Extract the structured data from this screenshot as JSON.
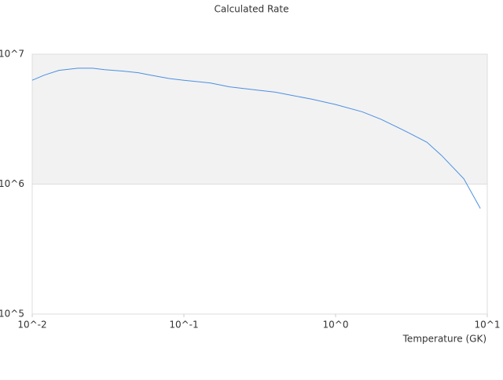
{
  "chart_data": {
    "type": "line",
    "title": "Calculated Rate",
    "x_label": "Temperature (GK)",
    "xscale": "log",
    "yscale": "log",
    "grid": true,
    "xlim": [
      0.01,
      10
    ],
    "ylim": [
      100000,
      10000000
    ],
    "xticks": [
      {
        "value": 0.01,
        "label": "10^-2"
      },
      {
        "value": 0.1,
        "label": "10^-1"
      },
      {
        "value": 1,
        "label": "10^0"
      },
      {
        "value": 10,
        "label": "10^1"
      }
    ],
    "yticks": [
      {
        "value": 100000,
        "label": "10^5"
      },
      {
        "value": 1000000,
        "label": "10^6"
      },
      {
        "value": 10000000,
        "label": "10^7"
      }
    ],
    "x": [
      0.01,
      0.012,
      0.015,
      0.02,
      0.025,
      0.03,
      0.04,
      0.05,
      0.06,
      0.08,
      0.1,
      0.15,
      0.2,
      0.3,
      0.4,
      0.5,
      0.7,
      1,
      1.5,
      2,
      3,
      4,
      5,
      7,
      9
    ],
    "series": [
      {
        "color": "#4a90e2",
        "values": [
          6300000,
          6900000,
          7500000,
          7800000,
          7800000,
          7600000,
          7400000,
          7200000,
          6900000,
          6500000,
          6300000,
          6000000,
          5600000,
          5300000,
          5100000,
          4850000,
          4500000,
          4100000,
          3600000,
          3150000,
          2500000,
          2100000,
          1660000,
          1100000,
          650000
        ]
      }
    ]
  }
}
